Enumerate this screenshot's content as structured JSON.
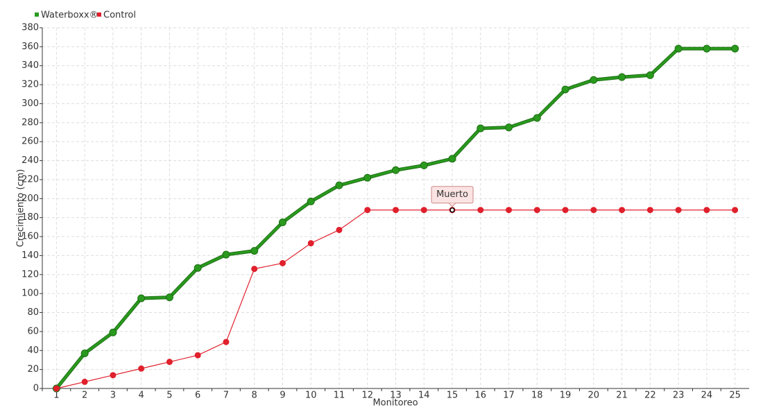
{
  "chart_data": {
    "type": "line",
    "x_label": "Monitoreo",
    "y_label": "Crecimiento (cm)",
    "categories": [
      "1",
      "2",
      "3",
      "4",
      "5",
      "6",
      "7",
      "8",
      "9",
      "10",
      "11",
      "12",
      "13",
      "14",
      "15",
      "16",
      "17",
      "18",
      "19",
      "20",
      "21",
      "22",
      "23",
      "24",
      "25"
    ],
    "series": [
      {
        "name": "Waterboxx®",
        "color": "#2a9a1e",
        "values": [
          0,
          37,
          59,
          95,
          96,
          127,
          141,
          145,
          175,
          197,
          214,
          222,
          230,
          235,
          242,
          274,
          275,
          285,
          315,
          325,
          328,
          330,
          358,
          358,
          358
        ]
      },
      {
        "name": "Control",
        "color": "#e0202c",
        "values": [
          0,
          7,
          14,
          21,
          28,
          35,
          49,
          126,
          132,
          153,
          167,
          188,
          188,
          188,
          188,
          188,
          188,
          188,
          188,
          188,
          188,
          188,
          188,
          188,
          188
        ]
      }
    ],
    "ylim": [
      0,
      380
    ],
    "yticks": [
      0,
      20,
      40,
      60,
      80,
      100,
      120,
      140,
      160,
      180,
      200,
      220,
      240,
      260,
      280,
      300,
      320,
      340,
      360,
      380
    ],
    "grid": true,
    "legend": "top-left",
    "annotations": [
      {
        "text": "Muerto",
        "series": "Control",
        "category": "15"
      }
    ]
  }
}
